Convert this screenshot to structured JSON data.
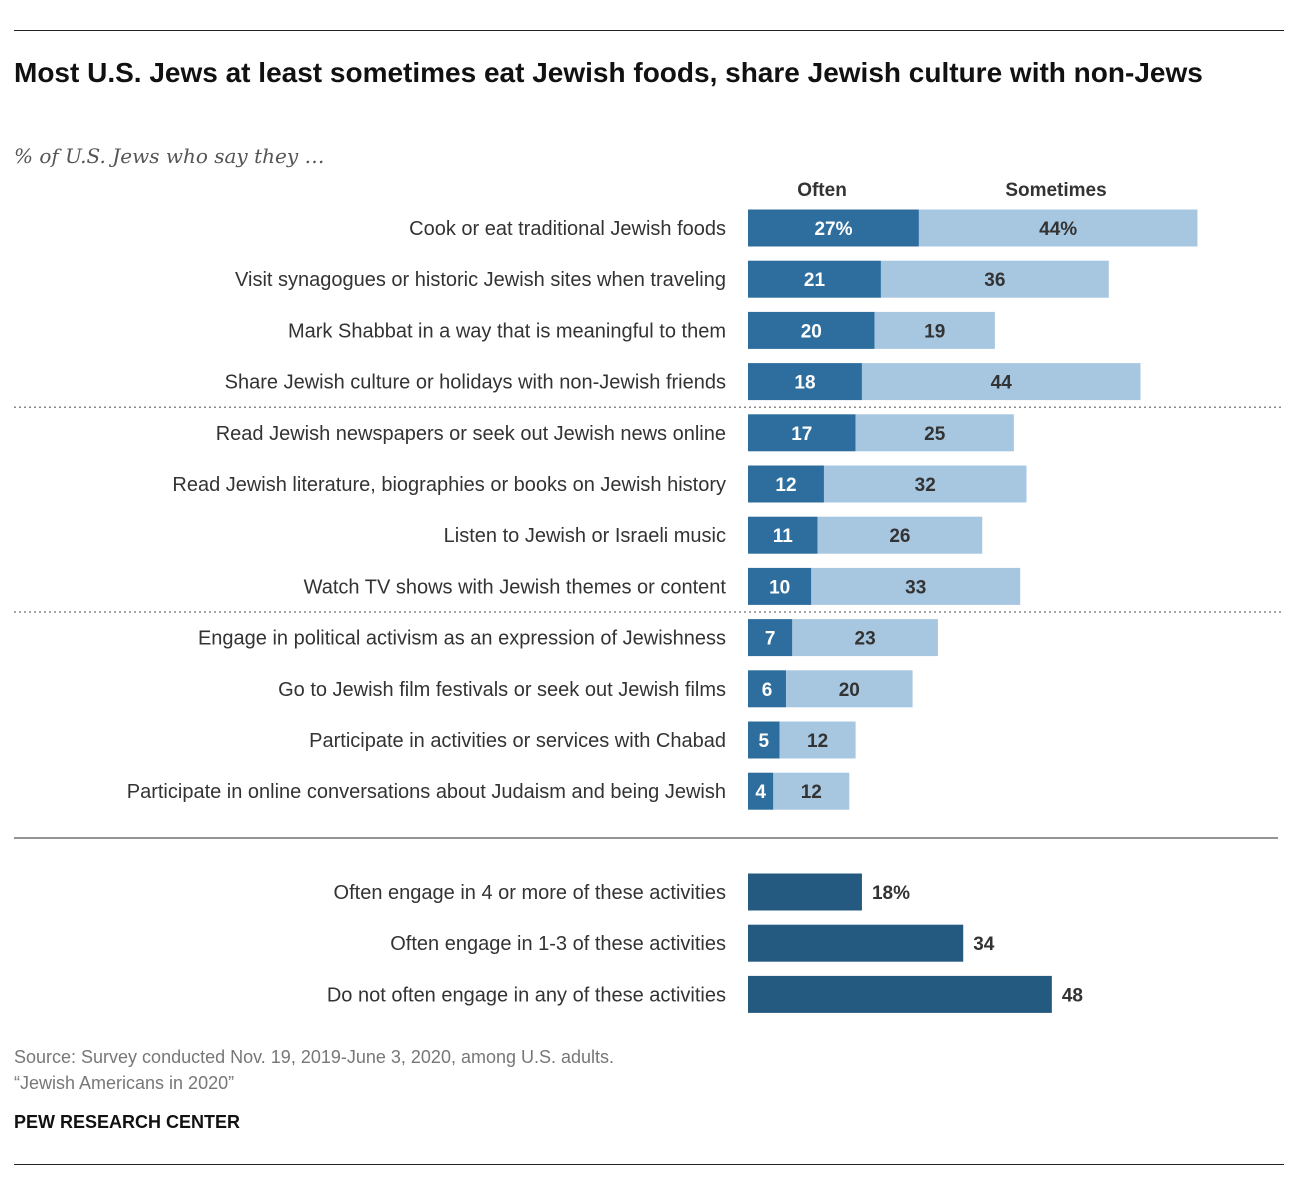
{
  "title": "Most U.S. Jews at least sometimes eat Jewish foods, share Jewish culture with non-Jews",
  "subtitle": "% of U.S. Jews who say they …",
  "source_line1": "Source: Survey conducted Nov. 19, 2019-June 3, 2020, among U.S. adults.",
  "source_line2": "“Jewish Americans in 2020”",
  "credit": "PEW RESEARCH CENTER",
  "colors": {
    "often": "#2e6e9e",
    "sometimes": "#a7c7e1",
    "summary": "#245a80"
  },
  "chart_data": [
    {
      "type": "bar",
      "stacked": true,
      "orientation": "horizontal",
      "unit": "%",
      "categories": [
        "Cook or eat traditional Jewish foods",
        "Visit synagogues or historic Jewish sites when traveling",
        "Mark Shabbat in a way that is meaningful to them",
        "Share Jewish culture or holidays with non-Jewish friends",
        "Read Jewish newspapers or seek out Jewish news online",
        "Read Jewish literature, biographies or books on Jewish history",
        "Listen to Jewish or Israeli music",
        "Watch TV shows with Jewish themes or content",
        "Engage in political activism as an expression of Jewishness",
        "Go to Jewish film festivals or seek out Jewish films",
        "Participate in activities or services with Chabad",
        "Participate in online conversations about Judaism and being Jewish"
      ],
      "series": [
        {
          "name": "Often",
          "values": [
            27,
            21,
            20,
            18,
            17,
            12,
            11,
            10,
            7,
            6,
            5,
            4
          ],
          "labels": [
            "27%",
            "21",
            "20",
            "18",
            "17",
            "12",
            "11",
            "10",
            "7",
            "6",
            "5",
            "4"
          ]
        },
        {
          "name": "Sometimes",
          "values": [
            44,
            36,
            19,
            44,
            25,
            32,
            26,
            33,
            23,
            20,
            12,
            12
          ],
          "labels": [
            "44%",
            "36",
            "19",
            "44",
            "25",
            "32",
            "26",
            "33",
            "23",
            "20",
            "12",
            "12"
          ]
        }
      ],
      "group_breaks_after": [
        3,
        7
      ]
    },
    {
      "type": "bar",
      "orientation": "horizontal",
      "unit": "%",
      "categories": [
        "Often engage in 4 or more of these activities",
        "Often engage in 1-3 of these activities",
        "Do not often engage in any of these activities"
      ],
      "values": [
        18,
        34,
        48
      ],
      "labels": [
        "18%",
        "34",
        "48"
      ]
    }
  ]
}
